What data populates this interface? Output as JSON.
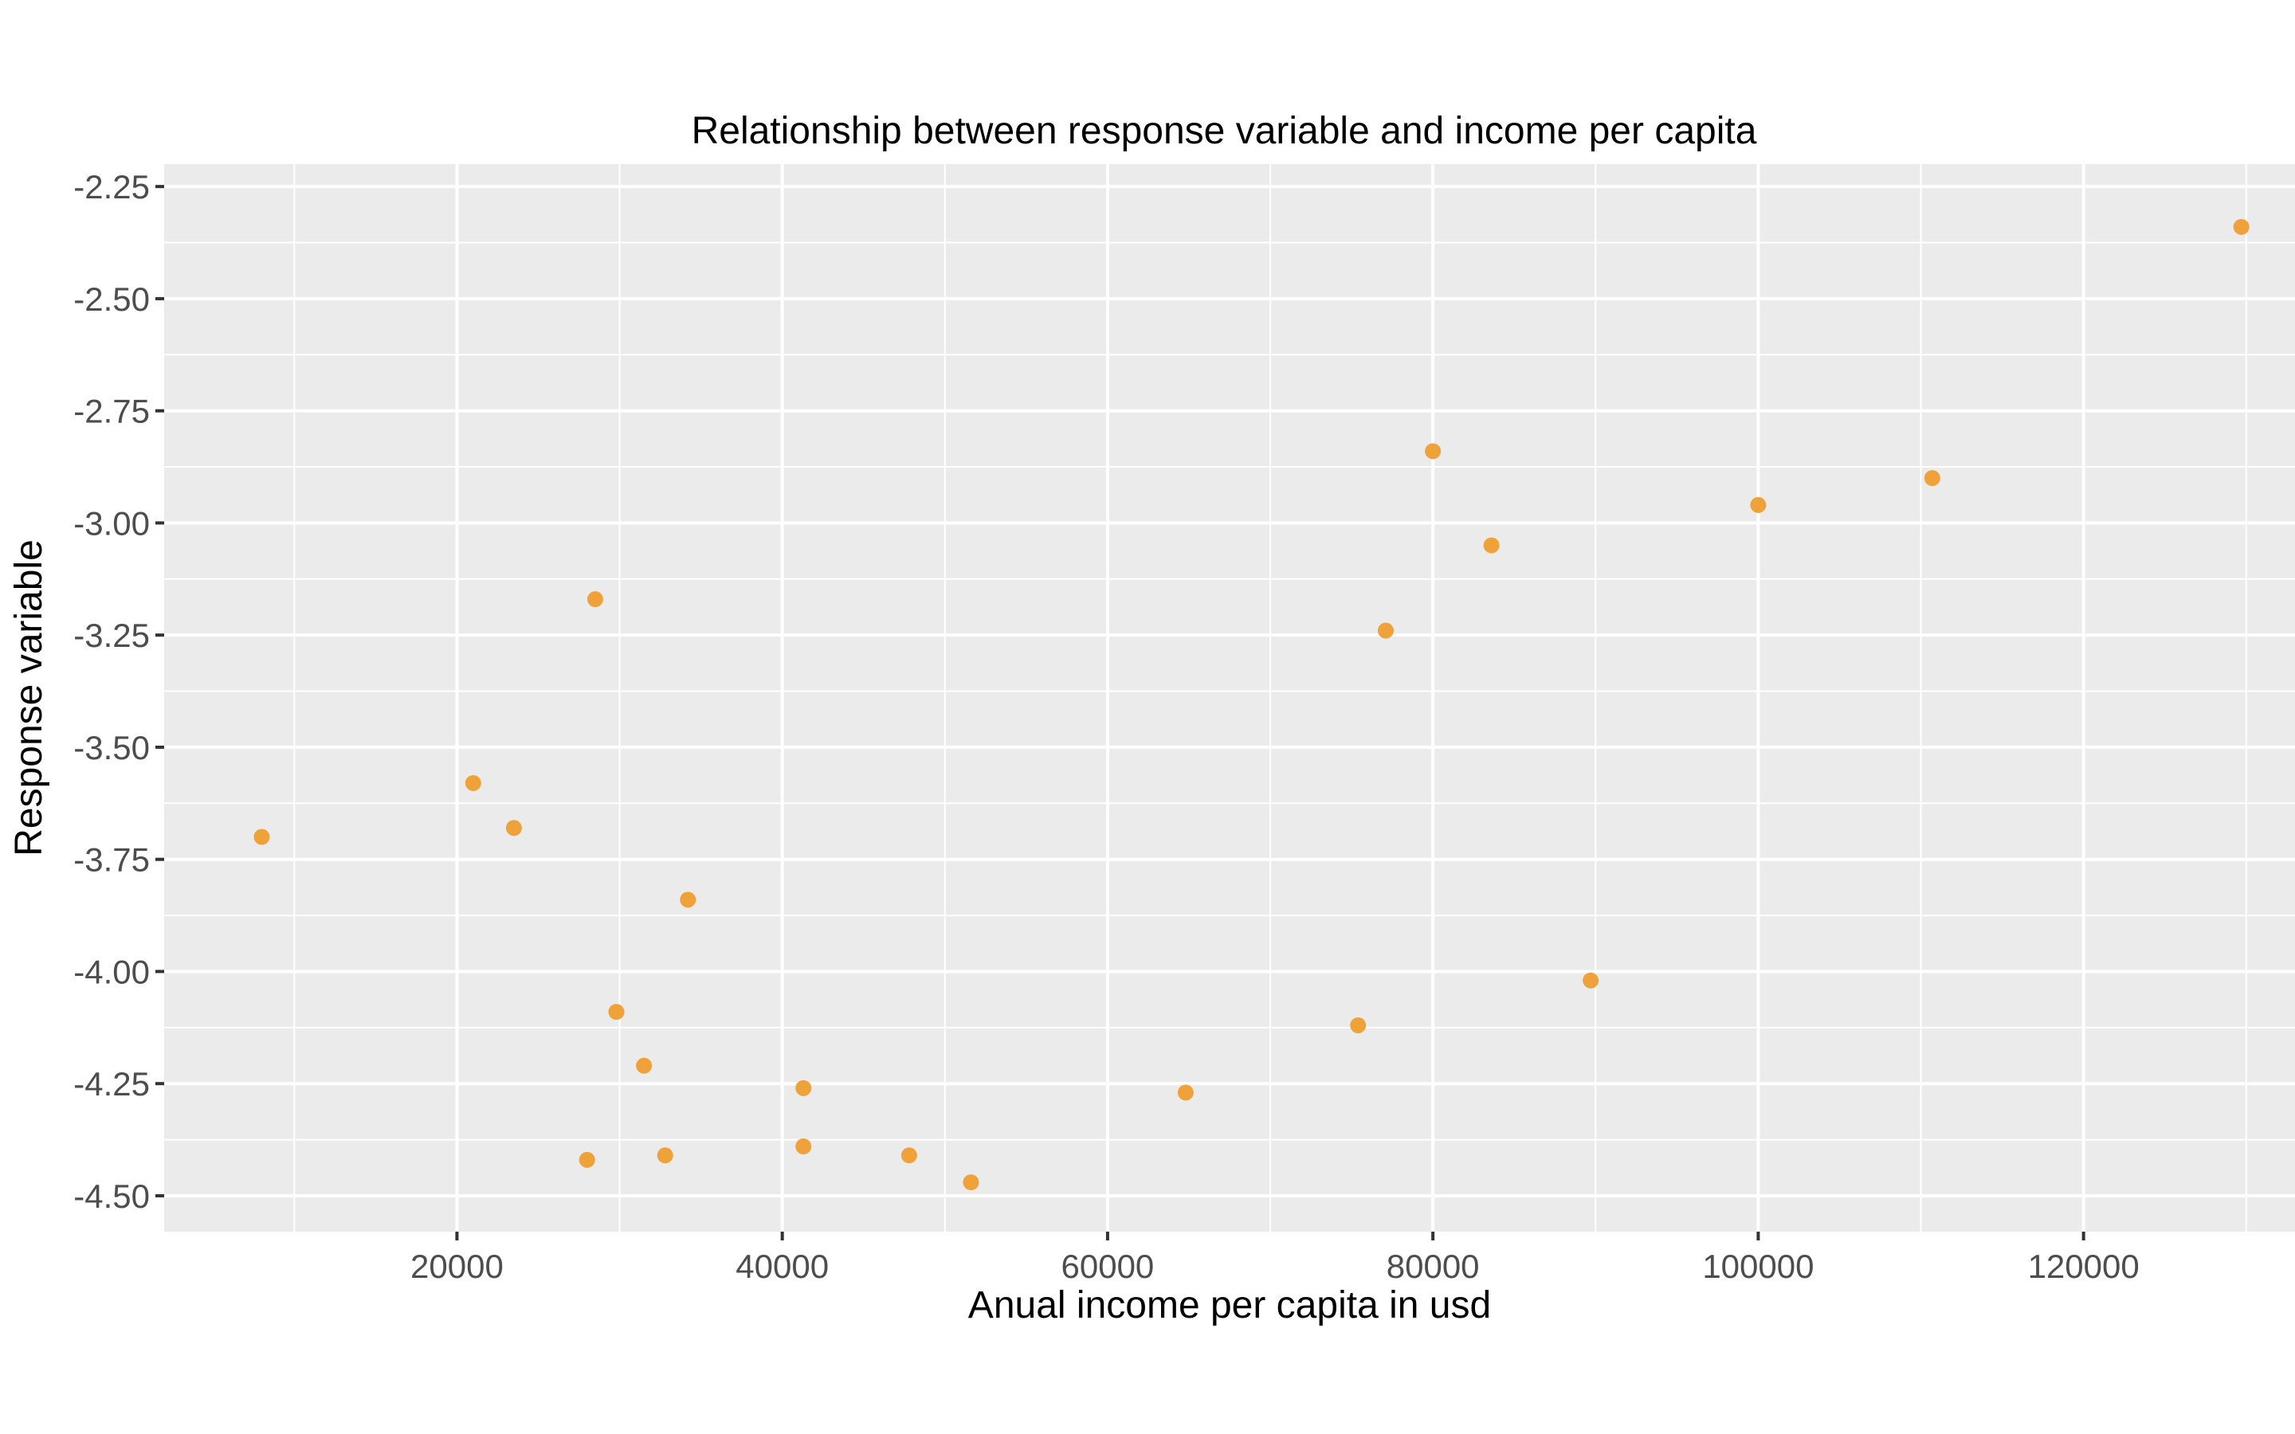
{
  "chart_data": {
    "type": "scatter",
    "title": "Relationship between response variable and income per capita",
    "xlabel": "Anual income per capita in usd",
    "ylabel": "Response variable",
    "xlim": [
      2000,
      133000
    ],
    "ylim": [
      -4.58,
      -2.2
    ],
    "x_ticks": [
      20000,
      40000,
      60000,
      80000,
      100000,
      120000
    ],
    "x_tick_labels": [
      "20000",
      "40000",
      "60000",
      "80000",
      "100000",
      "120000"
    ],
    "y_ticks": [
      -2.25,
      -2.5,
      -2.75,
      -3.0,
      -3.25,
      -3.5,
      -3.75,
      -4.0,
      -4.25,
      -4.5
    ],
    "y_tick_labels": [
      "-2.25",
      "-2.50",
      "-2.75",
      "-3.00",
      "-3.25",
      "-3.50",
      "-3.75",
      "-4.00",
      "-4.25",
      "-4.50"
    ],
    "grid": true,
    "legend": "none",
    "point_color": "#F0A23A",
    "panel_color": "#EBEBEB",
    "grid_color": "#FFFFFF",
    "points": [
      {
        "x": 8000,
        "y": -3.7
      },
      {
        "x": 21000,
        "y": -3.58
      },
      {
        "x": 23500,
        "y": -3.68
      },
      {
        "x": 28000,
        "y": -4.42
      },
      {
        "x": 28500,
        "y": -3.17
      },
      {
        "x": 29800,
        "y": -4.09
      },
      {
        "x": 31500,
        "y": -4.21
      },
      {
        "x": 32800,
        "y": -4.41
      },
      {
        "x": 34200,
        "y": -3.84
      },
      {
        "x": 41300,
        "y": -4.26
      },
      {
        "x": 41300,
        "y": -4.39
      },
      {
        "x": 47800,
        "y": -4.41
      },
      {
        "x": 51600,
        "y": -4.47
      },
      {
        "x": 64800,
        "y": -4.27
      },
      {
        "x": 75400,
        "y": -4.12
      },
      {
        "x": 77100,
        "y": -3.24
      },
      {
        "x": 80000,
        "y": -2.84
      },
      {
        "x": 83600,
        "y": -3.05
      },
      {
        "x": 89700,
        "y": -4.02
      },
      {
        "x": 100000,
        "y": -2.96
      },
      {
        "x": 110700,
        "y": -2.9
      },
      {
        "x": 129700,
        "y": -2.34
      }
    ]
  }
}
